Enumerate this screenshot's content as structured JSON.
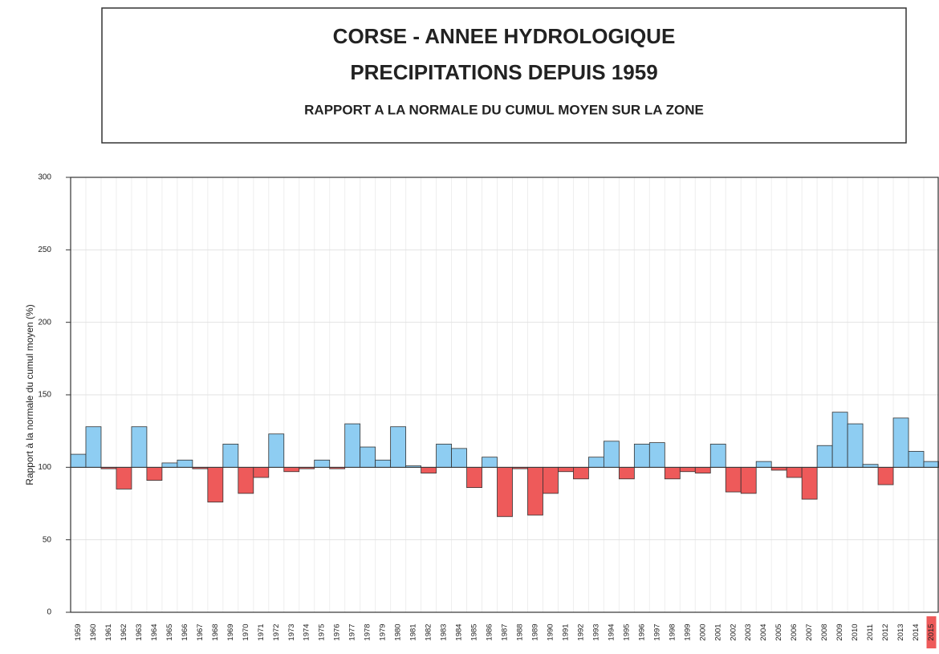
{
  "chart_data": {
    "type": "bar",
    "title": "CORSE - ANNEE HYDROLOGIQUE",
    "subtitle": "PRECIPITATIONS DEPUIS 1959",
    "caption": "RAPPORT A LA NORMALE DU CUMUL MOYEN SUR LA ZONE",
    "y_label": "Rapport à la normale du cumul moyen (%)",
    "categories": [
      "1959",
      "1960",
      "1961",
      "1962",
      "1963",
      "1964",
      "1965",
      "1966",
      "1967",
      "1968",
      "1969",
      "1970",
      "1971",
      "1972",
      "1973",
      "1974",
      "1975",
      "1976",
      "1977",
      "1978",
      "1979",
      "1980",
      "1981",
      "1982",
      "1983",
      "1984",
      "1985",
      "1986",
      "1987",
      "1988",
      "1989",
      "1990",
      "1991",
      "1992",
      "1993",
      "1994",
      "1995",
      "1996",
      "1997",
      "1998",
      "1999",
      "2000",
      "2001",
      "2002",
      "2003",
      "2004",
      "2005",
      "2006",
      "2007",
      "2008",
      "2009",
      "2010",
      "2011",
      "2012",
      "2013",
      "2014",
      "2015"
    ],
    "values": [
      109,
      128,
      99,
      85,
      128,
      91,
      103,
      105,
      99,
      76,
      116,
      82,
      93,
      123,
      97,
      99,
      105,
      99,
      130,
      114,
      105,
      128,
      101,
      96,
      116,
      113,
      86,
      107,
      66,
      99,
      67,
      82,
      97,
      92,
      107,
      118,
      92,
      116,
      117,
      92,
      97,
      96,
      116,
      83,
      82,
      104,
      98,
      93,
      78,
      115,
      138,
      130,
      102,
      88,
      134,
      111,
      104
    ],
    "baseline": 100,
    "color_above": "#8ecdf2",
    "color_below": "#ee5a5a",
    "highlight_index": 56,
    "highlight_color": "#ee5a5a",
    "ylim": [
      0,
      300
    ],
    "yticks": [
      0,
      50,
      100,
      150,
      200,
      250,
      300
    ],
    "grid": true
  }
}
